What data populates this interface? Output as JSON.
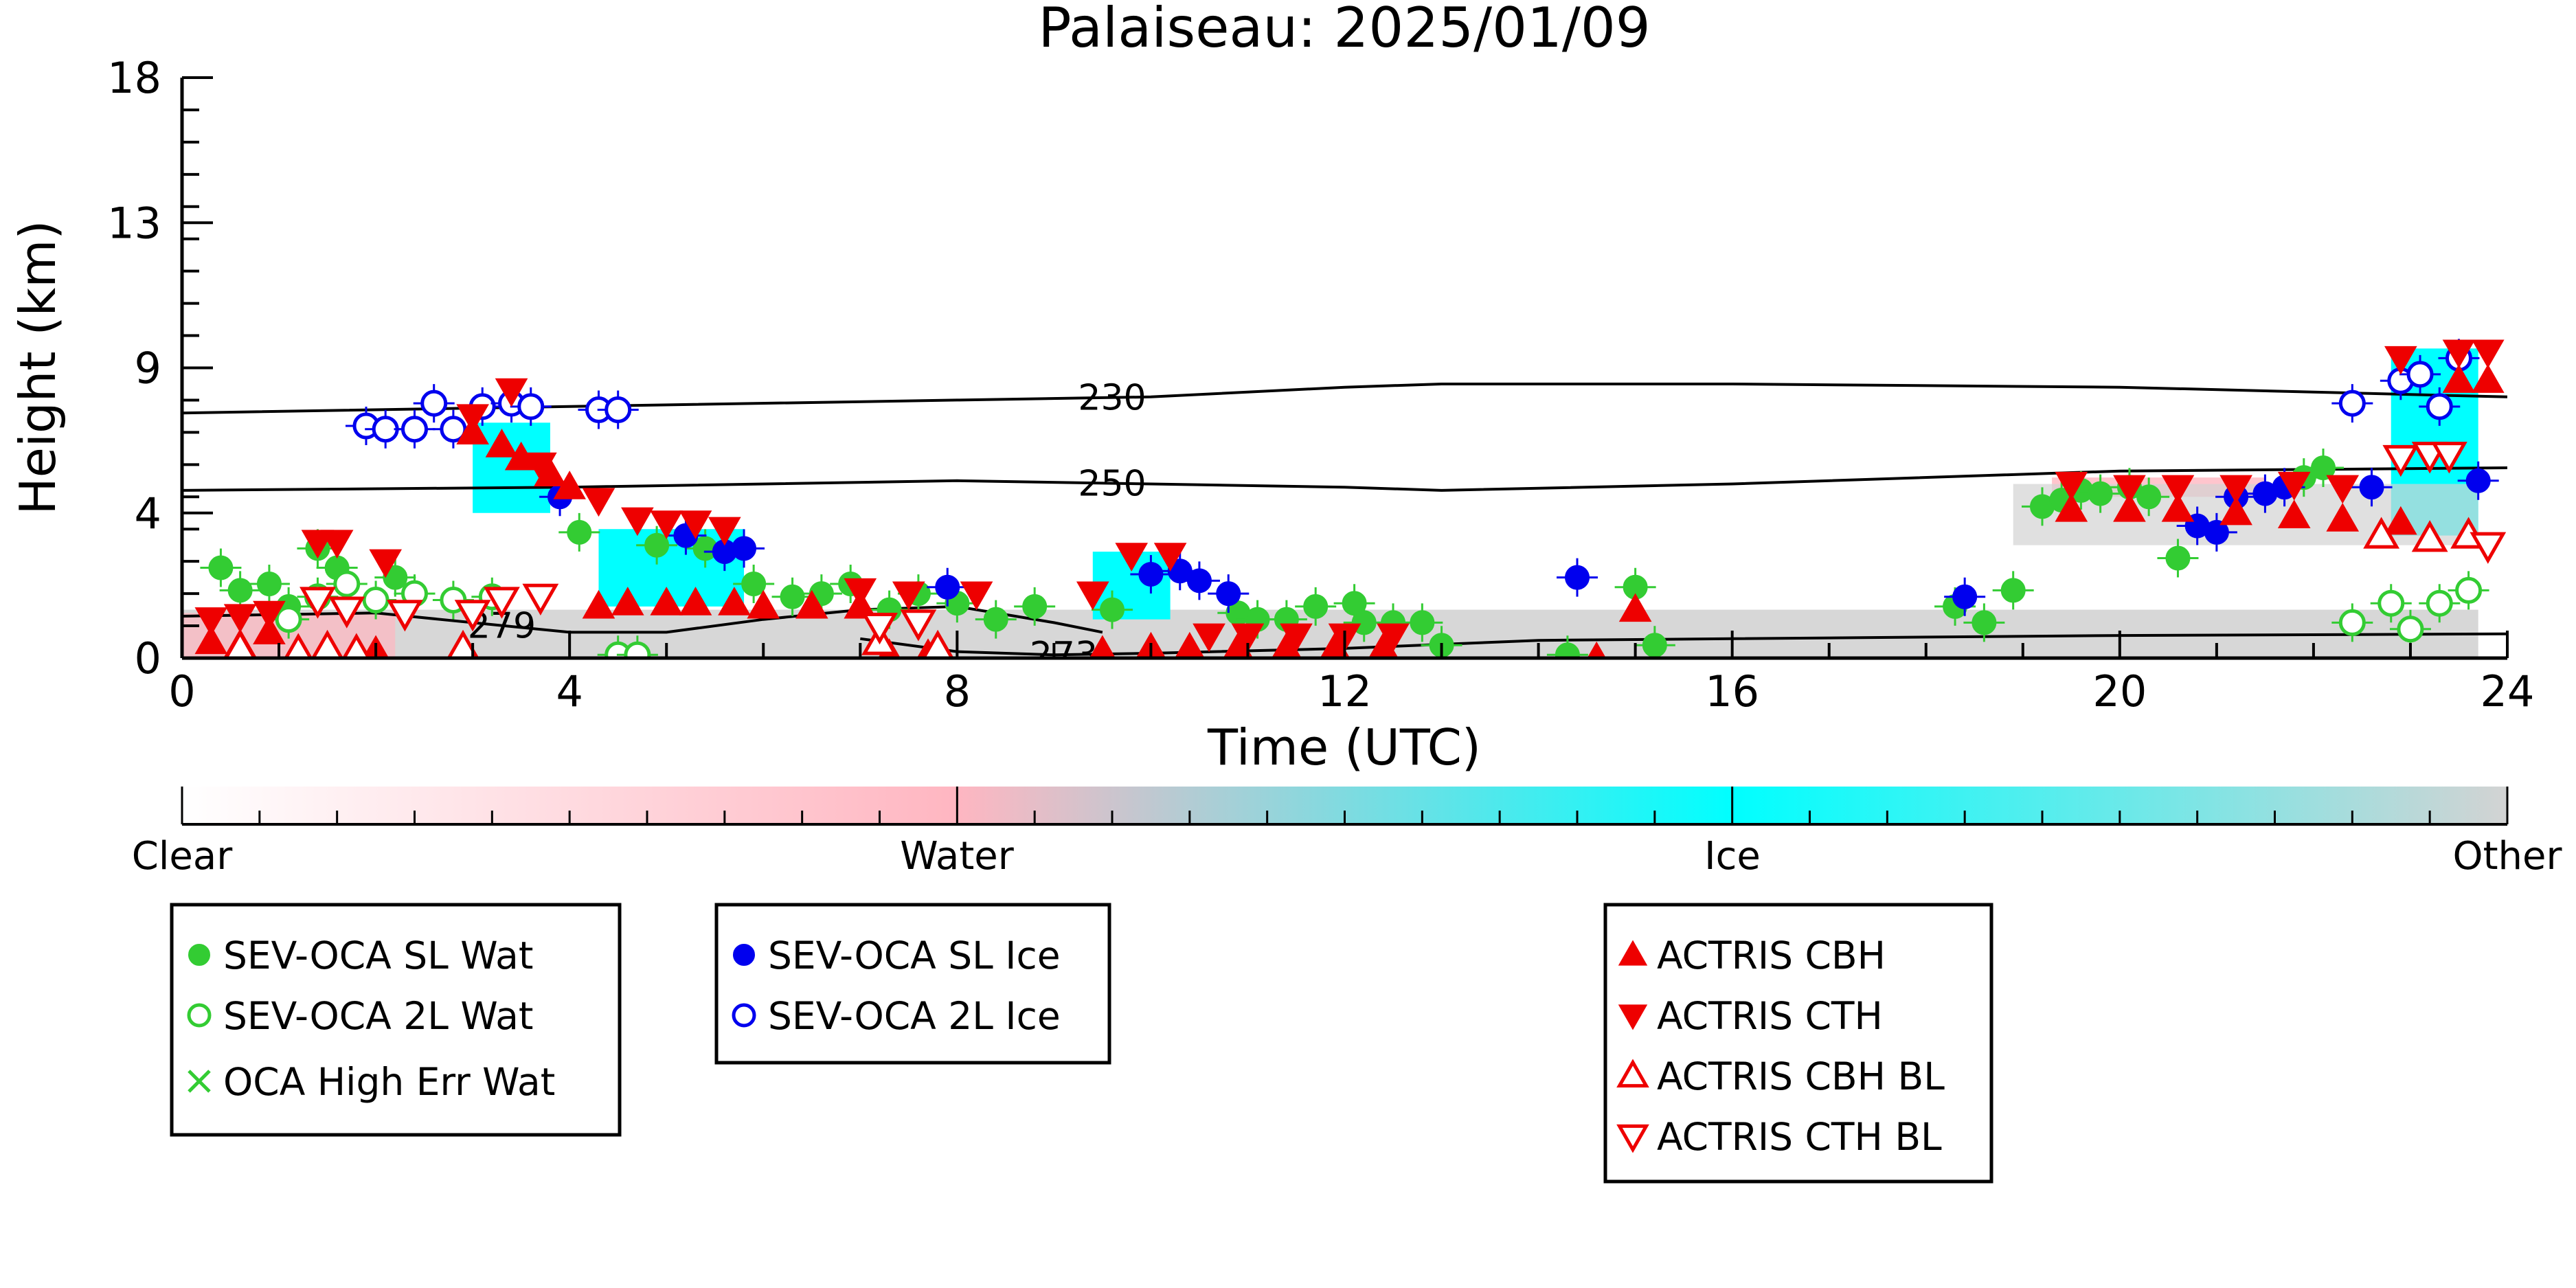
{
  "chart_data": {
    "type": "scatter",
    "title": "Palaiseau: 2025/01/09",
    "xlabel": "Time (UTC)",
    "ylabel": "Height (km)",
    "xlim": [
      0,
      24
    ],
    "ylim": [
      0,
      18
    ],
    "x_ticks": [
      "0",
      "4",
      "8",
      "12",
      "16",
      "20",
      "24"
    ],
    "y_ticks": [
      "0",
      "4",
      "9",
      "13",
      "18"
    ],
    "grid": false,
    "colorbar": {
      "labels": [
        "Clear",
        "Water",
        "Ice",
        "Other"
      ],
      "colors": [
        "#ffffff",
        "#ffb6c1",
        "#00ffff",
        "#d3d3d3"
      ]
    },
    "contours": [
      {
        "label": "230",
        "label_x": 9.6,
        "points": [
          [
            0,
            7.6
          ],
          [
            4,
            7.8
          ],
          [
            8,
            8.0
          ],
          [
            10,
            8.1
          ],
          [
            12,
            8.4
          ],
          [
            13,
            8.5
          ],
          [
            16,
            8.5
          ],
          [
            20,
            8.4
          ],
          [
            24,
            8.1
          ]
        ]
      },
      {
        "label": "250",
        "label_x": 9.6,
        "points": [
          [
            0,
            5.2
          ],
          [
            4,
            5.3
          ],
          [
            8,
            5.5
          ],
          [
            10,
            5.4
          ],
          [
            12,
            5.3
          ],
          [
            13,
            5.2
          ],
          [
            16,
            5.4
          ],
          [
            20,
            5.8
          ],
          [
            24,
            5.9
          ]
        ]
      },
      {
        "label": "279",
        "label_x": 3.3,
        "points": [
          [
            0,
            1.3
          ],
          [
            2,
            1.4
          ],
          [
            3,
            1.1
          ],
          [
            4,
            0.8
          ],
          [
            5,
            0.8
          ],
          [
            6,
            1.2
          ],
          [
            7,
            1.5
          ],
          [
            8,
            1.6
          ],
          [
            9,
            1.1
          ],
          [
            9.5,
            0.8
          ]
        ]
      },
      {
        "label": "273",
        "label_x": 9.1,
        "points": [
          [
            7,
            0.6
          ],
          [
            8,
            0.2
          ],
          [
            9,
            0.1
          ],
          [
            10,
            0.15
          ],
          [
            12,
            0.3
          ],
          [
            14,
            0.55
          ],
          [
            16,
            0.6
          ],
          [
            20,
            0.7
          ],
          [
            24,
            0.75
          ]
        ]
      }
    ],
    "series": [
      {
        "name": "SEV-OCA SL Wat",
        "marker": "filled-circle",
        "color": "#33cc33",
        "points": [
          [
            0.4,
            2.8
          ],
          [
            0.6,
            2.1
          ],
          [
            0.9,
            2.3
          ],
          [
            1.1,
            1.6
          ],
          [
            1.4,
            3.4
          ],
          [
            1.6,
            2.8
          ],
          [
            2.2,
            2.5
          ],
          [
            4.1,
            3.9
          ],
          [
            4.9,
            3.5
          ],
          [
            5.4,
            3.4
          ],
          [
            5.9,
            2.3
          ],
          [
            6.3,
            1.9
          ],
          [
            6.6,
            2.0
          ],
          [
            6.9,
            2.3
          ],
          [
            7.3,
            1.5
          ],
          [
            7.6,
            2.0
          ],
          [
            8.0,
            1.7
          ],
          [
            8.4,
            1.2
          ],
          [
            8.8,
            1.6
          ],
          [
            9.6,
            1.5
          ],
          [
            10.9,
            1.4
          ],
          [
            11.1,
            1.2
          ],
          [
            11.4,
            1.2
          ],
          [
            11.7,
            1.6
          ],
          [
            12.1,
            1.7
          ],
          [
            12.2,
            1.1
          ],
          [
            12.5,
            1.1
          ],
          [
            12.8,
            1.1
          ],
          [
            13.0,
            0.4
          ],
          [
            14.3,
            0.1
          ],
          [
            15.0,
            2.2
          ],
          [
            15.2,
            0.4
          ],
          [
            18.3,
            1.6
          ],
          [
            18.6,
            1.1
          ],
          [
            18.9,
            2.1
          ],
          [
            19.2,
            4.7
          ],
          [
            19.4,
            4.9
          ],
          [
            19.6,
            5.2
          ],
          [
            19.8,
            5.1
          ],
          [
            20.1,
            5.3
          ],
          [
            20.3,
            5.0
          ],
          [
            20.6,
            3.1
          ],
          [
            21.9,
            5.6
          ],
          [
            22.1,
            5.9
          ]
        ]
      },
      {
        "name": "SEV-OCA 2L Wat",
        "marker": "open-circle",
        "color": "#33cc33",
        "points": [
          [
            1.1,
            1.2
          ],
          [
            1.4,
            1.9
          ],
          [
            1.7,
            2.3
          ],
          [
            2.0,
            1.8
          ],
          [
            2.4,
            2.0
          ],
          [
            2.8,
            1.8
          ],
          [
            3.2,
            1.9
          ],
          [
            4.5,
            0.1
          ],
          [
            4.7,
            0.1
          ],
          [
            22.4,
            1.1
          ],
          [
            22.8,
            1.7
          ],
          [
            23.0,
            0.9
          ],
          [
            23.3,
            1.7
          ],
          [
            23.6,
            2.1
          ]
        ]
      },
      {
        "name": "OCA High Err Wat",
        "marker": "cross",
        "color": "#33cc33",
        "points": []
      },
      {
        "name": "SEV-OCA SL Ice",
        "marker": "filled-circle",
        "color": "#0000ee",
        "points": [
          [
            3.9,
            5.0
          ],
          [
            5.2,
            3.8
          ],
          [
            5.6,
            3.3
          ],
          [
            5.8,
            3.4
          ],
          [
            7.9,
            2.2
          ],
          [
            10.0,
            2.6
          ],
          [
            10.3,
            2.7
          ],
          [
            10.5,
            2.4
          ],
          [
            10.8,
            2.0
          ],
          [
            14.4,
            2.5
          ],
          [
            18.4,
            1.9
          ],
          [
            20.8,
            4.1
          ],
          [
            21.0,
            3.9
          ],
          [
            21.2,
            5.0
          ],
          [
            21.5,
            5.1
          ],
          [
            21.7,
            5.3
          ],
          [
            22.6,
            5.3
          ],
          [
            23.7,
            5.5
          ]
        ]
      },
      {
        "name": "SEV-OCA 2L Ice",
        "marker": "open-circle",
        "color": "#0000ee",
        "points": [
          [
            1.9,
            7.2
          ],
          [
            2.1,
            7.1
          ],
          [
            2.4,
            7.1
          ],
          [
            2.6,
            7.9
          ],
          [
            2.8,
            7.1
          ],
          [
            3.1,
            7.8
          ],
          [
            3.4,
            7.9
          ],
          [
            3.6,
            7.8
          ],
          [
            4.3,
            7.7
          ],
          [
            4.5,
            7.7
          ],
          [
            22.4,
            7.9
          ],
          [
            22.9,
            8.6
          ],
          [
            23.1,
            8.8
          ],
          [
            23.3,
            7.8
          ],
          [
            23.5,
            9.3
          ]
        ]
      },
      {
        "name": "ACTRIS CBH",
        "marker": "filled-triangle-up",
        "color": "#ee0000",
        "points": [
          [
            0.3,
            0.5
          ],
          [
            0.6,
            0.4
          ],
          [
            0.9,
            0.8
          ],
          [
            2.0,
            0.2
          ],
          [
            3.0,
            7.0
          ],
          [
            3.3,
            6.6
          ],
          [
            3.5,
            6.2
          ],
          [
            3.8,
            5.7
          ],
          [
            4.0,
            5.3
          ],
          [
            4.3,
            1.6
          ],
          [
            4.6,
            1.7
          ],
          [
            5.0,
            1.7
          ],
          [
            5.3,
            1.7
          ],
          [
            5.7,
            1.7
          ],
          [
            6.0,
            1.6
          ],
          [
            6.5,
            1.6
          ],
          [
            7.0,
            1.6
          ],
          [
            7.3,
            0.1
          ],
          [
            7.7,
            0.1
          ],
          [
            9.5,
            0.2
          ],
          [
            10.0,
            0.3
          ],
          [
            10.4,
            0.3
          ],
          [
            10.9,
            0.3
          ],
          [
            11.4,
            0.3
          ],
          [
            11.9,
            0.3
          ],
          [
            12.4,
            0.3
          ],
          [
            14.6,
            0.0
          ],
          [
            15.0,
            1.5
          ],
          [
            19.5,
            4.6
          ],
          [
            20.1,
            4.6
          ],
          [
            20.6,
            4.6
          ],
          [
            21.2,
            4.5
          ],
          [
            21.8,
            4.4
          ],
          [
            22.3,
            4.3
          ],
          [
            22.9,
            4.2
          ],
          [
            23.5,
            8.6
          ],
          [
            23.8,
            8.6
          ]
        ]
      },
      {
        "name": "ACTRIS CTH",
        "marker": "filled-triangle-down",
        "color": "#ee0000",
        "points": [
          [
            0.3,
            1.2
          ],
          [
            0.6,
            1.3
          ],
          [
            0.9,
            1.4
          ],
          [
            1.4,
            3.6
          ],
          [
            1.6,
            3.6
          ],
          [
            2.1,
            3.0
          ],
          [
            3.0,
            7.5
          ],
          [
            3.4,
            8.3
          ],
          [
            3.7,
            6.0
          ],
          [
            4.3,
            4.9
          ],
          [
            4.7,
            4.3
          ],
          [
            5.0,
            4.2
          ],
          [
            5.3,
            4.2
          ],
          [
            5.6,
            4.0
          ],
          [
            7.0,
            2.1
          ],
          [
            7.5,
            2.0
          ],
          [
            8.2,
            2.0
          ],
          [
            9.4,
            2.0
          ],
          [
            9.8,
            3.2
          ],
          [
            10.2,
            3.2
          ],
          [
            10.6,
            0.7
          ],
          [
            11.0,
            0.7
          ],
          [
            11.5,
            0.7
          ],
          [
            12.0,
            0.7
          ],
          [
            12.5,
            0.7
          ],
          [
            19.5,
            5.4
          ],
          [
            20.1,
            5.3
          ],
          [
            20.6,
            5.3
          ],
          [
            21.2,
            5.3
          ],
          [
            21.8,
            5.4
          ],
          [
            22.3,
            5.3
          ],
          [
            22.9,
            9.3
          ],
          [
            23.5,
            9.5
          ],
          [
            23.8,
            9.5
          ]
        ]
      },
      {
        "name": "ACTRIS CBH BL",
        "marker": "open-triangle-up",
        "color": "#ee0000",
        "points": [
          [
            0.6,
            0.3
          ],
          [
            1.2,
            0.2
          ],
          [
            1.5,
            0.3
          ],
          [
            1.8,
            0.2
          ],
          [
            2.9,
            0.3
          ],
          [
            7.2,
            0.5
          ],
          [
            7.8,
            0.3
          ],
          [
            22.7,
            3.8
          ],
          [
            23.2,
            3.7
          ],
          [
            23.6,
            3.8
          ]
        ]
      },
      {
        "name": "ACTRIS CTH BL",
        "marker": "open-triangle-down",
        "color": "#ee0000",
        "points": [
          [
            1.4,
            1.8
          ],
          [
            1.7,
            1.5
          ],
          [
            2.3,
            1.4
          ],
          [
            3.0,
            1.4
          ],
          [
            3.3,
            1.8
          ],
          [
            3.7,
            1.9
          ],
          [
            7.2,
            1.0
          ],
          [
            7.6,
            1.1
          ],
          [
            22.9,
            6.2
          ],
          [
            23.2,
            6.3
          ],
          [
            23.4,
            6.3
          ],
          [
            23.8,
            3.5
          ]
        ]
      }
    ]
  }
}
